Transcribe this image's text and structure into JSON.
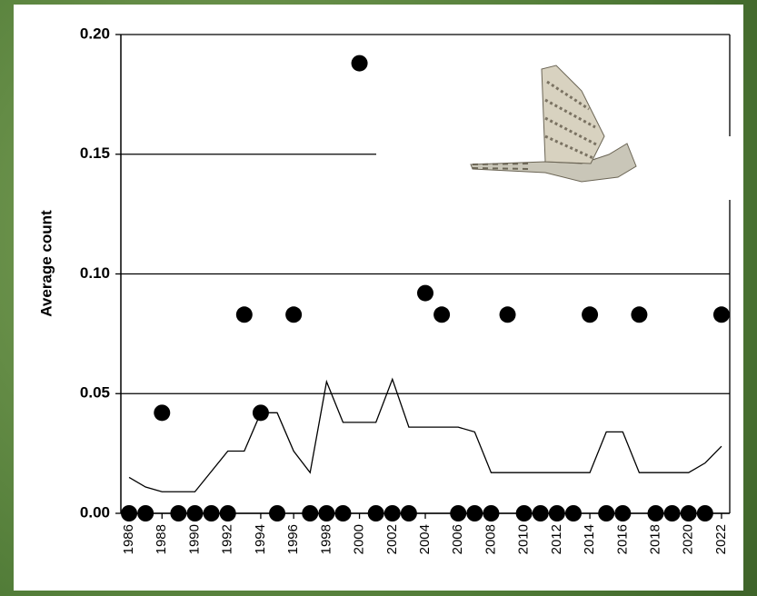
{
  "chart_data": {
    "type": "scatter",
    "y_label": "Average count",
    "x": [
      1986,
      1987,
      1988,
      1989,
      1990,
      1991,
      1992,
      1993,
      1994,
      1995,
      1996,
      1997,
      1998,
      1999,
      2000,
      2001,
      2002,
      2003,
      2004,
      2005,
      2006,
      2007,
      2008,
      2009,
      2010,
      2011,
      2012,
      2013,
      2014,
      2015,
      2016,
      2017,
      2018,
      2019,
      2020,
      2021,
      2022
    ],
    "series": [
      {
        "type": "scatter",
        "color": "#000000",
        "values": [
          0,
          0,
          0.042,
          0,
          0,
          0,
          0,
          0.083,
          0.042,
          0,
          0.083,
          0,
          0,
          0,
          0.188,
          0,
          0,
          0,
          0.092,
          0.083,
          0,
          0,
          0,
          0.083,
          0,
          0,
          0,
          0,
          0.083,
          0,
          0,
          0.083,
          0,
          0,
          0,
          0,
          0.083
        ]
      },
      {
        "type": "line",
        "color": "#000000",
        "values": [
          0.015,
          0.011,
          0.009,
          0.009,
          0.009,
          0.0175,
          0.026,
          0.026,
          0.042,
          0.042,
          0.026,
          0.017,
          0.055,
          0.038,
          0.038,
          0.038,
          0.056,
          0.036,
          0.036,
          0.036,
          0.036,
          0.034,
          0.017,
          0.017,
          0.017,
          0.017,
          0.017,
          0.017,
          0.017,
          0.034,
          0.034,
          0.017,
          0.017,
          0.017,
          0.017,
          0.021,
          0.028
        ]
      }
    ],
    "xlim": [
      1985.5,
      2022.5
    ],
    "xticks": [
      1986,
      1988,
      1990,
      1992,
      1994,
      1996,
      1998,
      2000,
      2002,
      2004,
      2006,
      2008,
      2010,
      2012,
      2014,
      2016,
      2018,
      2020,
      2022
    ],
    "ylim": [
      0,
      0.2
    ],
    "yticks": [
      {
        "value": 0,
        "label": "0.00"
      },
      {
        "value": 0.05,
        "label": "0.05"
      },
      {
        "value": 0.1,
        "label": "0.10"
      },
      {
        "value": 0.15,
        "label": "0.15"
      },
      {
        "value": 0.2,
        "label": "0.20"
      }
    ],
    "grid": true
  }
}
